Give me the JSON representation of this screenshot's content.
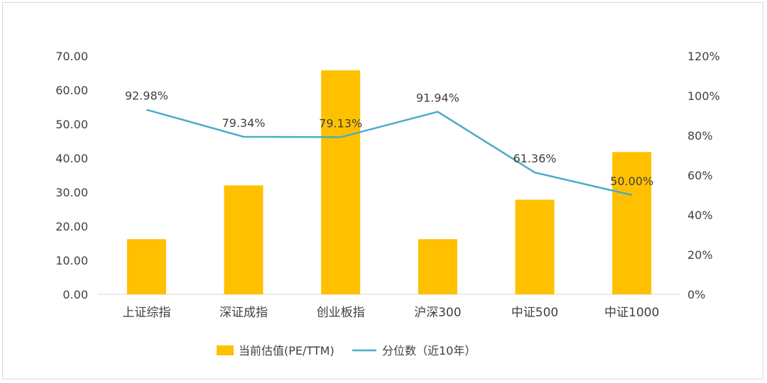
{
  "chart_data": {
    "type": "bar",
    "categories": [
      "上证综指",
      "深证成指",
      "创业板指",
      "沪深300",
      "中证500",
      "中证1000"
    ],
    "series": [
      {
        "name": "当前估值(PE/TTM)",
        "type": "bar",
        "axis": "left",
        "values": [
          16.2,
          32.0,
          65.8,
          16.2,
          27.8,
          41.8
        ],
        "color": "#FFC000"
      },
      {
        "name": "分位数（近10年）",
        "type": "line",
        "axis": "right",
        "values": [
          92.98,
          79.34,
          79.13,
          91.94,
          61.36,
          50.0
        ],
        "labels": [
          "92.98%",
          "79.34%",
          "79.13%",
          "91.94%",
          "61.36%",
          "50.00%"
        ],
        "color": "#4BACC6"
      }
    ],
    "y_left": {
      "ylim": [
        0,
        70
      ],
      "ticks": [
        "0.00",
        "10.00",
        "20.00",
        "30.00",
        "40.00",
        "50.00",
        "60.00",
        "70.00"
      ]
    },
    "y_right": {
      "ylim": [
        0,
        120
      ],
      "ticks": [
        "0%",
        "20%",
        "40%",
        "60%",
        "80%",
        "100%",
        "120%"
      ]
    },
    "grid": false,
    "legend_position": "bottom"
  }
}
